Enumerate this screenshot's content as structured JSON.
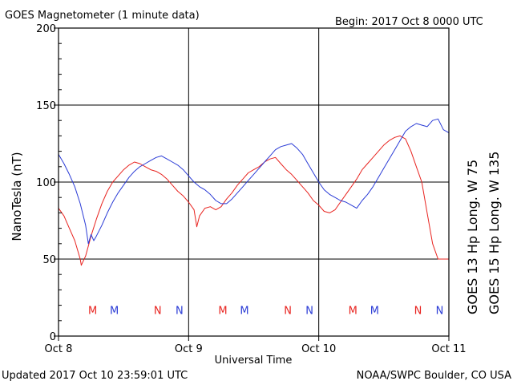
{
  "header": {
    "title": "GOES Magnetometer (1 minute data)",
    "begin": "Begin:  2017 Oct 8 0000 UTC"
  },
  "footer": {
    "updated": "Updated 2017 Oct 10 23:59:01 UTC",
    "credit": "NOAA/SWPC Boulder, CO USA"
  },
  "colors": {
    "goes13": "#e8231f",
    "goes15": "#2a3bd6"
  },
  "chart_data": {
    "type": "line",
    "title": "GOES Magnetometer (1 minute data)",
    "xlabel": "Universal Time",
    "ylabel": "NanoTesla (nT)",
    "ylim": [
      0,
      200
    ],
    "xlim": [
      0,
      72
    ],
    "x_unit": "hours since 2017 Oct 8 0000 UTC",
    "yticks": [
      0,
      50,
      100,
      150,
      200
    ],
    "xticks": [
      {
        "x": 0,
        "label": "Oct 8"
      },
      {
        "x": 24,
        "label": "Oct 9"
      },
      {
        "x": 48,
        "label": "Oct 10"
      },
      {
        "x": 72,
        "label": "Oct 11"
      }
    ],
    "grid": true,
    "series": [
      {
        "name": "GOES 13 Hp  Long. W 75",
        "color": "#e8231f",
        "x": [
          0,
          1,
          2,
          3,
          4,
          4.2,
          5,
          6,
          7,
          8,
          9,
          10,
          11,
          12,
          13,
          14,
          15,
          16,
          17,
          18,
          19,
          20,
          21,
          22,
          23,
          24,
          25,
          25.5,
          26,
          27,
          28,
          29,
          30,
          31,
          32,
          33,
          34,
          35,
          36,
          37,
          38,
          39,
          40,
          41,
          42,
          43,
          44,
          45,
          46,
          47,
          48,
          49,
          50,
          51,
          52,
          53,
          54,
          55,
          56,
          57,
          58,
          59,
          60,
          61,
          62,
          63,
          64,
          65,
          66,
          67,
          68,
          69,
          70,
          71,
          72
        ],
        "y": [
          83,
          78,
          70,
          62,
          50,
          46,
          52,
          65,
          76,
          86,
          94,
          100,
          104,
          108,
          111,
          113,
          112,
          110,
          108,
          107,
          105,
          102,
          98,
          94,
          91,
          87,
          82,
          71,
          78,
          83,
          84,
          82,
          84,
          89,
          93,
          98,
          102,
          106,
          108,
          110,
          113,
          115,
          116,
          112,
          108,
          105,
          101,
          97,
          93,
          88,
          85,
          81,
          80,
          82,
          87,
          92,
          97,
          102,
          108,
          112,
          116,
          120,
          124,
          127,
          129,
          130,
          128,
          120,
          110,
          100,
          80,
          60,
          50,
          50,
          50
        ]
      },
      {
        "name": "GOES 15 Hp  Long. W 135",
        "color": "#2a3bd6",
        "x": [
          0,
          1,
          2,
          3,
          4,
          5,
          5.5,
          6,
          6.5,
          7,
          8,
          9,
          10,
          11,
          12,
          13,
          14,
          15,
          16,
          17,
          18,
          19,
          20,
          21,
          22,
          23,
          24,
          25,
          26,
          27,
          28,
          29,
          30,
          31,
          32,
          33,
          34,
          35,
          36,
          37,
          38,
          39,
          40,
          41,
          42,
          43,
          44,
          45,
          46,
          47,
          48,
          49,
          50,
          51,
          52,
          53,
          54,
          55,
          56,
          57,
          58,
          59,
          60,
          61,
          62,
          63,
          64,
          65,
          66,
          67,
          68,
          69,
          70,
          71,
          72
        ],
        "y": [
          118,
          112,
          105,
          97,
          86,
          72,
          60,
          66,
          62,
          65,
          72,
          80,
          87,
          93,
          98,
          103,
          107,
          110,
          112,
          114,
          116,
          117,
          115,
          113,
          111,
          108,
          104,
          100,
          97,
          95,
          92,
          88,
          86,
          86,
          89,
          93,
          97,
          101,
          105,
          109,
          113,
          117,
          121,
          123,
          124,
          125,
          122,
          118,
          112,
          106,
          100,
          95,
          92,
          90,
          88,
          87,
          85,
          83,
          88,
          92,
          97,
          103,
          109,
          115,
          121,
          127,
          133,
          136,
          138,
          137,
          136,
          140,
          141,
          134,
          132
        ]
      }
    ],
    "markers": [
      {
        "x": 6.3,
        "label": "M",
        "series": 0
      },
      {
        "x": 10.3,
        "label": "M",
        "series": 1
      },
      {
        "x": 18.3,
        "label": "N",
        "series": 0
      },
      {
        "x": 22.3,
        "label": "N",
        "series": 1
      },
      {
        "x": 30.3,
        "label": "M",
        "series": 0
      },
      {
        "x": 34.3,
        "label": "M",
        "series": 1
      },
      {
        "x": 42.3,
        "label": "N",
        "series": 0
      },
      {
        "x": 46.3,
        "label": "N",
        "series": 1
      },
      {
        "x": 54.3,
        "label": "M",
        "series": 0
      },
      {
        "x": 58.3,
        "label": "M",
        "series": 1
      },
      {
        "x": 66.3,
        "label": "N",
        "series": 0
      },
      {
        "x": 70.3,
        "label": "N",
        "series": 1
      }
    ],
    "marker_y": 17
  }
}
